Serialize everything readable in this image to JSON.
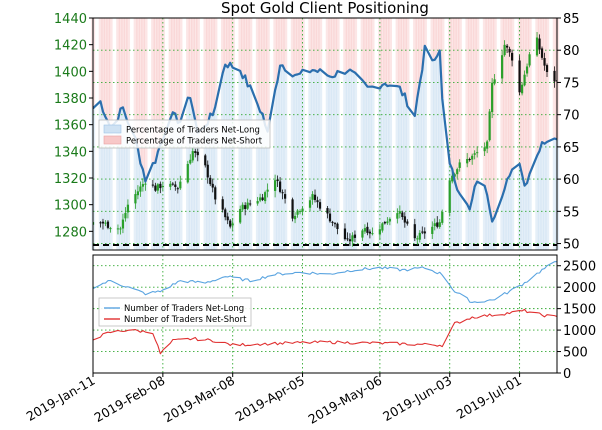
{
  "chart_data": [
    {
      "type": "candlestick",
      "title": "Spot Gold Client Positioning",
      "left_axis": {
        "ticks": [
          1280,
          1300,
          1320,
          1340,
          1360,
          1380,
          1400,
          1420,
          1440
        ],
        "tick_labels": [
          "1280",
          "1300",
          "1320",
          "1340",
          "1360",
          "1380",
          "1400",
          "1420",
          "1440"
        ],
        "range": [
          1266,
          1440
        ],
        "color": "#1a7a1a"
      },
      "right_axis": {
        "ticks": [
          50,
          55,
          60,
          65,
          70,
          75,
          80,
          85
        ],
        "tick_labels": [
          "50",
          "55",
          "60",
          "65",
          "70",
          "75",
          "80",
          "85"
        ],
        "range": [
          49,
          85
        ]
      },
      "legend": {
        "position": "left",
        "entries": [
          "Percentage of Traders Net-Long",
          "Percentage of Traders Net-Short"
        ]
      },
      "legend_colors": [
        "#cfe2f3",
        "#f8c8c8"
      ],
      "reference_line": 50,
      "price_anchors": [
        {
          "date": "2019-01-11",
          "price": 1289
        },
        {
          "date": "2019-01-18",
          "price": 1284
        },
        {
          "date": "2019-01-22",
          "price": 1282
        },
        {
          "date": "2019-01-25",
          "price": 1300
        },
        {
          "date": "2019-02-01",
          "price": 1318
        },
        {
          "date": "2019-02-05",
          "price": 1312
        },
        {
          "date": "2019-02-08",
          "price": 1315
        },
        {
          "date": "2019-02-14",
          "price": 1313
        },
        {
          "date": "2019-02-20",
          "price": 1340
        },
        {
          "date": "2019-02-25",
          "price": 1328
        },
        {
          "date": "2019-03-01",
          "price": 1305
        },
        {
          "date": "2019-03-07",
          "price": 1283
        },
        {
          "date": "2019-03-11",
          "price": 1297
        },
        {
          "date": "2019-03-20",
          "price": 1306
        },
        {
          "date": "2019-03-25",
          "price": 1320
        },
        {
          "date": "2019-04-01",
          "price": 1292
        },
        {
          "date": "2019-04-09",
          "price": 1306
        },
        {
          "date": "2019-04-15",
          "price": 1292
        },
        {
          "date": "2019-04-23",
          "price": 1272
        },
        {
          "date": "2019-04-30",
          "price": 1283
        },
        {
          "date": "2019-05-03",
          "price": 1278
        },
        {
          "date": "2019-05-13",
          "price": 1296
        },
        {
          "date": "2019-05-20",
          "price": 1274
        },
        {
          "date": "2019-05-30",
          "price": 1287
        },
        {
          "date": "2019-06-03",
          "price": 1320
        },
        {
          "date": "2019-06-07",
          "price": 1330
        },
        {
          "date": "2019-06-12",
          "price": 1336
        },
        {
          "date": "2019-06-18",
          "price": 1345
        },
        {
          "date": "2019-06-20",
          "price": 1390
        },
        {
          "date": "2019-06-25",
          "price": 1420
        },
        {
          "date": "2019-06-28",
          "price": 1410
        },
        {
          "date": "2019-07-01",
          "price": 1384
        },
        {
          "date": "2019-07-05",
          "price": 1412
        },
        {
          "date": "2019-07-08",
          "price": 1423
        },
        {
          "date": "2019-07-12",
          "price": 1398
        },
        {
          "date": "2019-07-16",
          "price": 1392
        }
      ],
      "pct_long_anchors": [
        {
          "date": "2019-01-11",
          "value": 71
        },
        {
          "date": "2019-01-14",
          "value": 72
        },
        {
          "date": "2019-01-18",
          "value": 68
        },
        {
          "date": "2019-01-23",
          "value": 71
        },
        {
          "date": "2019-01-28",
          "value": 66
        },
        {
          "date": "2019-02-01",
          "value": 60
        },
        {
          "date": "2019-02-05",
          "value": 63
        },
        {
          "date": "2019-02-11",
          "value": 70
        },
        {
          "date": "2019-02-15",
          "value": 69
        },
        {
          "date": "2019-02-19",
          "value": 73
        },
        {
          "date": "2019-02-22",
          "value": 67
        },
        {
          "date": "2019-02-28",
          "value": 70
        },
        {
          "date": "2019-03-05",
          "value": 78
        },
        {
          "date": "2019-03-11",
          "value": 77
        },
        {
          "date": "2019-03-15",
          "value": 74
        },
        {
          "date": "2019-03-20",
          "value": 70
        },
        {
          "date": "2019-03-22",
          "value": 67
        },
        {
          "date": "2019-03-27",
          "value": 78
        },
        {
          "date": "2019-04-03",
          "value": 76
        },
        {
          "date": "2019-04-09",
          "value": 77
        },
        {
          "date": "2019-04-16",
          "value": 76
        },
        {
          "date": "2019-04-23",
          "value": 77
        },
        {
          "date": "2019-05-01",
          "value": 74
        },
        {
          "date": "2019-05-08",
          "value": 75
        },
        {
          "date": "2019-05-14",
          "value": 74
        },
        {
          "date": "2019-05-20",
          "value": 70
        },
        {
          "date": "2019-05-24",
          "value": 80
        },
        {
          "date": "2019-05-28",
          "value": 78
        },
        {
          "date": "2019-05-30",
          "value": 80
        },
        {
          "date": "2019-05-31",
          "value": 73
        },
        {
          "date": "2019-06-03",
          "value": 62
        },
        {
          "date": "2019-06-06",
          "value": 59
        },
        {
          "date": "2019-06-11",
          "value": 55
        },
        {
          "date": "2019-06-14",
          "value": 60
        },
        {
          "date": "2019-06-18",
          "value": 58
        },
        {
          "date": "2019-06-20",
          "value": 54
        },
        {
          "date": "2019-06-25",
          "value": 58
        },
        {
          "date": "2019-06-27",
          "value": 61
        },
        {
          "date": "2019-07-01",
          "value": 63
        },
        {
          "date": "2019-07-03",
          "value": 59
        },
        {
          "date": "2019-07-08",
          "value": 64
        },
        {
          "date": "2019-07-11",
          "value": 66
        },
        {
          "date": "2019-07-15",
          "value": 67
        },
        {
          "date": "2019-07-16",
          "value": 66
        }
      ]
    },
    {
      "type": "line",
      "y_axis": {
        "ticks": [
          0,
          500,
          1000,
          1500,
          2000,
          2500
        ],
        "tick_labels": [
          "0",
          "500",
          "1000",
          "1500",
          "2000",
          "2500"
        ],
        "range": [
          0,
          2750
        ]
      },
      "x_axis": {
        "tick_labels": [
          "2019-Jan-11",
          "2019-Feb-08",
          "2019-Mar-08",
          "2019-Apr-05",
          "2019-May-06",
          "2019-Jun-03",
          "2019-Jul-01"
        ],
        "tick_dates": [
          "2019-01-11",
          "2019-02-08",
          "2019-03-08",
          "2019-04-05",
          "2019-05-06",
          "2019-06-03",
          "2019-07-01"
        ],
        "range": [
          "2019-01-11",
          "2019-07-16"
        ]
      },
      "legend": {
        "position": "left"
      },
      "series": [
        {
          "name": "Number of Traders Net-Long",
          "color": "#5aa4e0",
          "anchors": [
            {
              "date": "2019-01-11",
              "value": 2000
            },
            {
              "date": "2019-01-18",
              "value": 2150
            },
            {
              "date": "2019-01-25",
              "value": 2000
            },
            {
              "date": "2019-02-01",
              "value": 1850
            },
            {
              "date": "2019-02-07",
              "value": 1900
            },
            {
              "date": "2019-02-15",
              "value": 2150
            },
            {
              "date": "2019-02-25",
              "value": 2100
            },
            {
              "date": "2019-03-05",
              "value": 2250
            },
            {
              "date": "2019-03-15",
              "value": 2150
            },
            {
              "date": "2019-03-25",
              "value": 2300
            },
            {
              "date": "2019-04-05",
              "value": 2350
            },
            {
              "date": "2019-04-15",
              "value": 2300
            },
            {
              "date": "2019-04-25",
              "value": 2400
            },
            {
              "date": "2019-05-06",
              "value": 2450
            },
            {
              "date": "2019-05-15",
              "value": 2400
            },
            {
              "date": "2019-05-24",
              "value": 2450
            },
            {
              "date": "2019-05-31",
              "value": 2300
            },
            {
              "date": "2019-06-05",
              "value": 1900
            },
            {
              "date": "2019-06-12",
              "value": 1650
            },
            {
              "date": "2019-06-20",
              "value": 1700
            },
            {
              "date": "2019-06-27",
              "value": 1900
            },
            {
              "date": "2019-07-03",
              "value": 2100
            },
            {
              "date": "2019-07-10",
              "value": 2400
            },
            {
              "date": "2019-07-16",
              "value": 2600
            }
          ]
        },
        {
          "name": "Number of Traders Net-Short",
          "color": "#e03030",
          "anchors": [
            {
              "date": "2019-01-11",
              "value": 800
            },
            {
              "date": "2019-01-18",
              "value": 950
            },
            {
              "date": "2019-01-25",
              "value": 1000
            },
            {
              "date": "2019-02-04",
              "value": 950
            },
            {
              "date": "2019-02-07",
              "value": 450
            },
            {
              "date": "2019-02-12",
              "value": 750
            },
            {
              "date": "2019-02-20",
              "value": 800
            },
            {
              "date": "2019-03-01",
              "value": 750
            },
            {
              "date": "2019-03-08",
              "value": 650
            },
            {
              "date": "2019-03-20",
              "value": 680
            },
            {
              "date": "2019-04-01",
              "value": 700
            },
            {
              "date": "2019-04-15",
              "value": 720
            },
            {
              "date": "2019-05-01",
              "value": 700
            },
            {
              "date": "2019-05-15",
              "value": 680
            },
            {
              "date": "2019-05-31",
              "value": 650
            },
            {
              "date": "2019-06-05",
              "value": 1150
            },
            {
              "date": "2019-06-12",
              "value": 1300
            },
            {
              "date": "2019-06-20",
              "value": 1350
            },
            {
              "date": "2019-06-27",
              "value": 1400
            },
            {
              "date": "2019-07-03",
              "value": 1450
            },
            {
              "date": "2019-07-10",
              "value": 1350
            },
            {
              "date": "2019-07-16",
              "value": 1300
            }
          ]
        }
      ]
    }
  ]
}
